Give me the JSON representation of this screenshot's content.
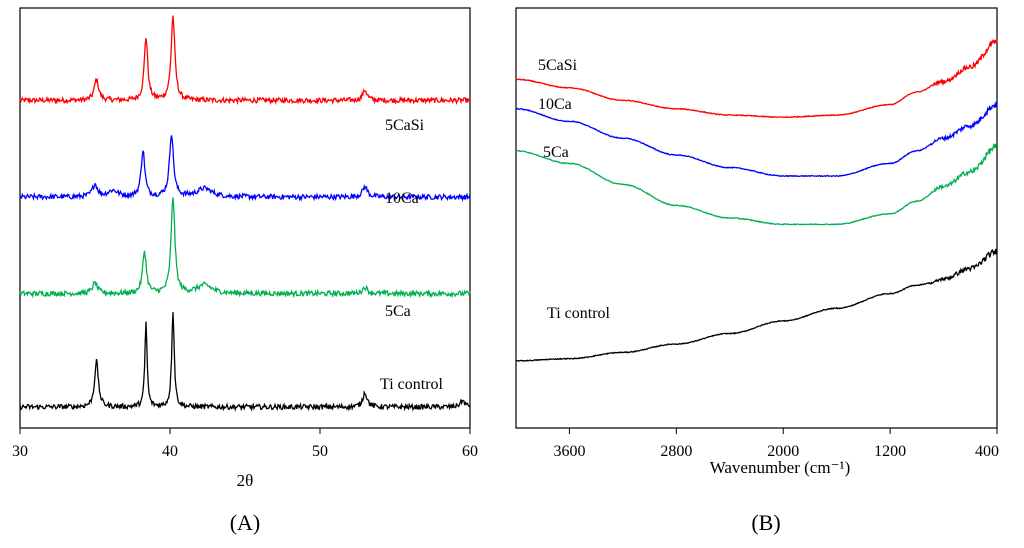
{
  "colors": {
    "red": "#ff0000",
    "blue": "#0000ff",
    "green": "#00b050",
    "black": "#000000"
  },
  "chart_data": [
    {
      "panel": "A",
      "panel_label": "(A)",
      "type": "line",
      "title": "",
      "xlabel": "2θ",
      "ylabel": "",
      "xlim": [
        30,
        60
      ],
      "xticks": [
        30,
        40,
        50,
        60
      ],
      "grid": false,
      "legend": "inline labels",
      "series": [
        {
          "name": "5CaSi",
          "label": "5CaSi",
          "color": "#ff0000",
          "offset": 0.78,
          "peaks": [
            {
              "center": 35.1,
              "height": 0.05,
              "width": 0.35
            },
            {
              "center": 38.4,
              "height": 0.15,
              "width": 0.28
            },
            {
              "center": 40.2,
              "height": 0.2,
              "width": 0.3
            },
            {
              "center": 53.0,
              "height": 0.025,
              "width": 0.35
            }
          ]
        },
        {
          "name": "10Ca",
          "label": "10Ca",
          "color": "#0000ff",
          "offset": 0.55,
          "peaks": [
            {
              "center": 35.0,
              "height": 0.03,
              "width": 0.4
            },
            {
              "center": 36.2,
              "height": 0.015,
              "width": 0.8
            },
            {
              "center": 38.2,
              "height": 0.11,
              "width": 0.3
            },
            {
              "center": 40.1,
              "height": 0.15,
              "width": 0.32
            },
            {
              "center": 42.3,
              "height": 0.02,
              "width": 1.2
            },
            {
              "center": 53.0,
              "height": 0.025,
              "width": 0.4
            }
          ]
        },
        {
          "name": "5Ca",
          "label": "5Ca",
          "color": "#00b050",
          "offset": 0.32,
          "peaks": [
            {
              "center": 35.0,
              "height": 0.025,
              "width": 0.4
            },
            {
              "center": 38.3,
              "height": 0.1,
              "width": 0.3
            },
            {
              "center": 40.2,
              "height": 0.23,
              "width": 0.3
            },
            {
              "center": 42.3,
              "height": 0.02,
              "width": 1.2
            },
            {
              "center": 53.0,
              "height": 0.015,
              "width": 0.4
            }
          ]
        },
        {
          "name": "Ti control",
          "label": "Ti control",
          "color": "#000000",
          "offset": 0.05,
          "peaks": [
            {
              "center": 35.1,
              "height": 0.11,
              "width": 0.3
            },
            {
              "center": 38.4,
              "height": 0.2,
              "width": 0.18
            },
            {
              "center": 40.2,
              "height": 0.23,
              "width": 0.2
            },
            {
              "center": 53.0,
              "height": 0.035,
              "width": 0.35
            },
            {
              "center": 59.5,
              "height": 0.015,
              "width": 0.4
            }
          ]
        }
      ]
    },
    {
      "panel": "B",
      "panel_label": "(B)",
      "type": "line",
      "title": "",
      "xlabel": "Wavenumber (cm⁻¹)",
      "ylabel": "",
      "xlim": [
        4000,
        400
      ],
      "xticks": [
        3600,
        2800,
        2000,
        1200,
        400
      ],
      "grid": false,
      "legend": "inline labels",
      "series": [
        {
          "name": "5CaSi",
          "label": "5CaSi",
          "color": "#ff0000",
          "x": [
            4000,
            3600,
            3200,
            2800,
            2400,
            2000,
            1600,
            1200,
            1000,
            800,
            600,
            400
          ],
          "y": [
            0.83,
            0.81,
            0.78,
            0.76,
            0.745,
            0.74,
            0.745,
            0.77,
            0.8,
            0.825,
            0.86,
            0.92
          ]
        },
        {
          "name": "10Ca",
          "label": "10Ca",
          "color": "#0000ff",
          "x": [
            4000,
            3600,
            3200,
            2800,
            2400,
            2000,
            1600,
            1200,
            1000,
            800,
            600,
            400
          ],
          "y": [
            0.76,
            0.73,
            0.69,
            0.65,
            0.62,
            0.6,
            0.6,
            0.63,
            0.66,
            0.69,
            0.72,
            0.77
          ]
        },
        {
          "name": "5Ca",
          "label": "5Ca",
          "color": "#00b050",
          "x": [
            4000,
            3600,
            3200,
            2800,
            2400,
            2000,
            1600,
            1200,
            1000,
            800,
            600,
            400
          ],
          "y": [
            0.66,
            0.63,
            0.58,
            0.53,
            0.5,
            0.485,
            0.485,
            0.51,
            0.54,
            0.575,
            0.61,
            0.67
          ]
        },
        {
          "name": "Ti control",
          "label": "Ti control",
          "color": "#000000",
          "x": [
            4000,
            3600,
            3200,
            2800,
            2400,
            2000,
            1600,
            1200,
            1000,
            900,
            800,
            600,
            400
          ],
          "y": [
            0.16,
            0.165,
            0.18,
            0.2,
            0.225,
            0.255,
            0.285,
            0.32,
            0.34,
            0.345,
            0.355,
            0.38,
            0.42
          ]
        }
      ]
    }
  ]
}
